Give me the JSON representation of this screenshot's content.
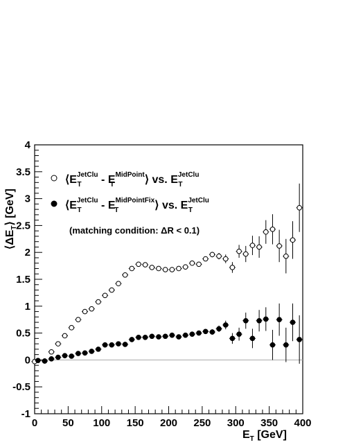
{
  "chart_data": {
    "type": "scatter",
    "xlabel": {
      "main": "E",
      "sub": "T",
      "unit": " [GeV]"
    },
    "ylabel": {
      "open": "⟨ΔE",
      "sub": "T",
      "close": "⟩ [GeV]"
    },
    "xlim": [
      0,
      400
    ],
    "ylim": [
      -1,
      4
    ],
    "xticks": [
      0,
      50,
      100,
      150,
      200,
      250,
      300,
      350,
      400
    ],
    "yticks": [
      -1,
      -0.5,
      0,
      0.5,
      1,
      1.5,
      2,
      2.5,
      3,
      3.5,
      4
    ],
    "reference_line": 0,
    "annotation": "(matching condition: ΔR < 0.1)",
    "series": [
      {
        "marker": "open-circle",
        "legend": {
          "lang": "⟨E",
          "sup1": "JetClu",
          "sub1": "T",
          "mid": " - E",
          "sup2": "MidPoint",
          "sub2": "T",
          "end": "⟩ vs. E",
          "sup3": "JetClu",
          "sub3": "T"
        },
        "points": [
          {
            "x": 0,
            "y": -0.03,
            "e": 0.02
          },
          {
            "x": 15,
            "y": -0.02,
            "e": 0.02
          },
          {
            "x": 25,
            "y": 0.15,
            "e": 0.02
          },
          {
            "x": 35,
            "y": 0.3,
            "e": 0.02
          },
          {
            "x": 45,
            "y": 0.45,
            "e": 0.02
          },
          {
            "x": 55,
            "y": 0.6,
            "e": 0.02
          },
          {
            "x": 65,
            "y": 0.75,
            "e": 0.02
          },
          {
            "x": 75,
            "y": 0.9,
            "e": 0.02
          },
          {
            "x": 85,
            "y": 0.95,
            "e": 0.02
          },
          {
            "x": 95,
            "y": 1.08,
            "e": 0.02
          },
          {
            "x": 105,
            "y": 1.2,
            "e": 0.02
          },
          {
            "x": 115,
            "y": 1.3,
            "e": 0.02
          },
          {
            "x": 125,
            "y": 1.42,
            "e": 0.02
          },
          {
            "x": 135,
            "y": 1.58,
            "e": 0.02
          },
          {
            "x": 145,
            "y": 1.7,
            "e": 0.02
          },
          {
            "x": 155,
            "y": 1.78,
            "e": 0.02
          },
          {
            "x": 165,
            "y": 1.77,
            "e": 0.02
          },
          {
            "x": 175,
            "y": 1.72,
            "e": 0.02
          },
          {
            "x": 185,
            "y": 1.7,
            "e": 0.02
          },
          {
            "x": 195,
            "y": 1.68,
            "e": 0.02
          },
          {
            "x": 205,
            "y": 1.68,
            "e": 0.02
          },
          {
            "x": 215,
            "y": 1.7,
            "e": 0.02
          },
          {
            "x": 225,
            "y": 1.73,
            "e": 0.03
          },
          {
            "x": 235,
            "y": 1.8,
            "e": 0.03
          },
          {
            "x": 245,
            "y": 1.78,
            "e": 0.03
          },
          {
            "x": 255,
            "y": 1.88,
            "e": 0.04
          },
          {
            "x": 265,
            "y": 1.96,
            "e": 0.05
          },
          {
            "x": 275,
            "y": 1.93,
            "e": 0.06
          },
          {
            "x": 285,
            "y": 1.88,
            "e": 0.08
          },
          {
            "x": 295,
            "y": 1.72,
            "e": 0.1
          },
          {
            "x": 305,
            "y": 2.02,
            "e": 0.12
          },
          {
            "x": 315,
            "y": 1.97,
            "e": 0.15
          },
          {
            "x": 325,
            "y": 2.13,
            "e": 0.18
          },
          {
            "x": 335,
            "y": 2.1,
            "e": 0.2
          },
          {
            "x": 345,
            "y": 2.38,
            "e": 0.22
          },
          {
            "x": 355,
            "y": 2.43,
            "e": 0.28
          },
          {
            "x": 365,
            "y": 2.12,
            "e": 0.3
          },
          {
            "x": 375,
            "y": 1.93,
            "e": 0.32
          },
          {
            "x": 385,
            "y": 2.23,
            "e": 0.35
          },
          {
            "x": 395,
            "y": 2.83,
            "e": 0.45
          }
        ]
      },
      {
        "marker": "filled-circle",
        "legend": {
          "lang": "⟨E",
          "sup1": "JetClu",
          "sub1": "T",
          "mid": " - E",
          "sup2": "MidPointFix",
          "sub2": "T",
          "end": "⟩ vs. E",
          "sup3": "JetClu",
          "sub3": "T"
        },
        "points": [
          {
            "x": 5,
            "y": -0.01,
            "e": 0.02
          },
          {
            "x": 15,
            "y": -0.02,
            "e": 0.02
          },
          {
            "x": 25,
            "y": 0.02,
            "e": 0.02
          },
          {
            "x": 35,
            "y": 0.05,
            "e": 0.02
          },
          {
            "x": 45,
            "y": 0.08,
            "e": 0.02
          },
          {
            "x": 55,
            "y": 0.07,
            "e": 0.02
          },
          {
            "x": 65,
            "y": 0.12,
            "e": 0.02
          },
          {
            "x": 75,
            "y": 0.13,
            "e": 0.02
          },
          {
            "x": 85,
            "y": 0.16,
            "e": 0.02
          },
          {
            "x": 95,
            "y": 0.2,
            "e": 0.02
          },
          {
            "x": 105,
            "y": 0.28,
            "e": 0.02
          },
          {
            "x": 115,
            "y": 0.28,
            "e": 0.02
          },
          {
            "x": 125,
            "y": 0.3,
            "e": 0.02
          },
          {
            "x": 135,
            "y": 0.29,
            "e": 0.02
          },
          {
            "x": 145,
            "y": 0.38,
            "e": 0.02
          },
          {
            "x": 155,
            "y": 0.42,
            "e": 0.02
          },
          {
            "x": 165,
            "y": 0.42,
            "e": 0.02
          },
          {
            "x": 175,
            "y": 0.44,
            "e": 0.02
          },
          {
            "x": 185,
            "y": 0.43,
            "e": 0.02
          },
          {
            "x": 195,
            "y": 0.44,
            "e": 0.02
          },
          {
            "x": 205,
            "y": 0.46,
            "e": 0.02
          },
          {
            "x": 215,
            "y": 0.43,
            "e": 0.03
          },
          {
            "x": 225,
            "y": 0.46,
            "e": 0.03
          },
          {
            "x": 235,
            "y": 0.48,
            "e": 0.03
          },
          {
            "x": 245,
            "y": 0.5,
            "e": 0.03
          },
          {
            "x": 255,
            "y": 0.53,
            "e": 0.04
          },
          {
            "x": 265,
            "y": 0.52,
            "e": 0.05
          },
          {
            "x": 275,
            "y": 0.58,
            "e": 0.06
          },
          {
            "x": 285,
            "y": 0.65,
            "e": 0.08
          },
          {
            "x": 295,
            "y": 0.4,
            "e": 0.1
          },
          {
            "x": 305,
            "y": 0.48,
            "e": 0.12
          },
          {
            "x": 315,
            "y": 0.73,
            "e": 0.15
          },
          {
            "x": 325,
            "y": 0.4,
            "e": 0.18
          },
          {
            "x": 335,
            "y": 0.73,
            "e": 0.2
          },
          {
            "x": 345,
            "y": 0.76,
            "e": 0.22
          },
          {
            "x": 355,
            "y": 0.28,
            "e": 0.28
          },
          {
            "x": 365,
            "y": 0.75,
            "e": 0.3
          },
          {
            "x": 375,
            "y": 0.28,
            "e": 0.32
          },
          {
            "x": 385,
            "y": 0.7,
            "e": 0.35
          },
          {
            "x": 395,
            "y": 0.38,
            "e": 0.45
          }
        ]
      }
    ]
  }
}
